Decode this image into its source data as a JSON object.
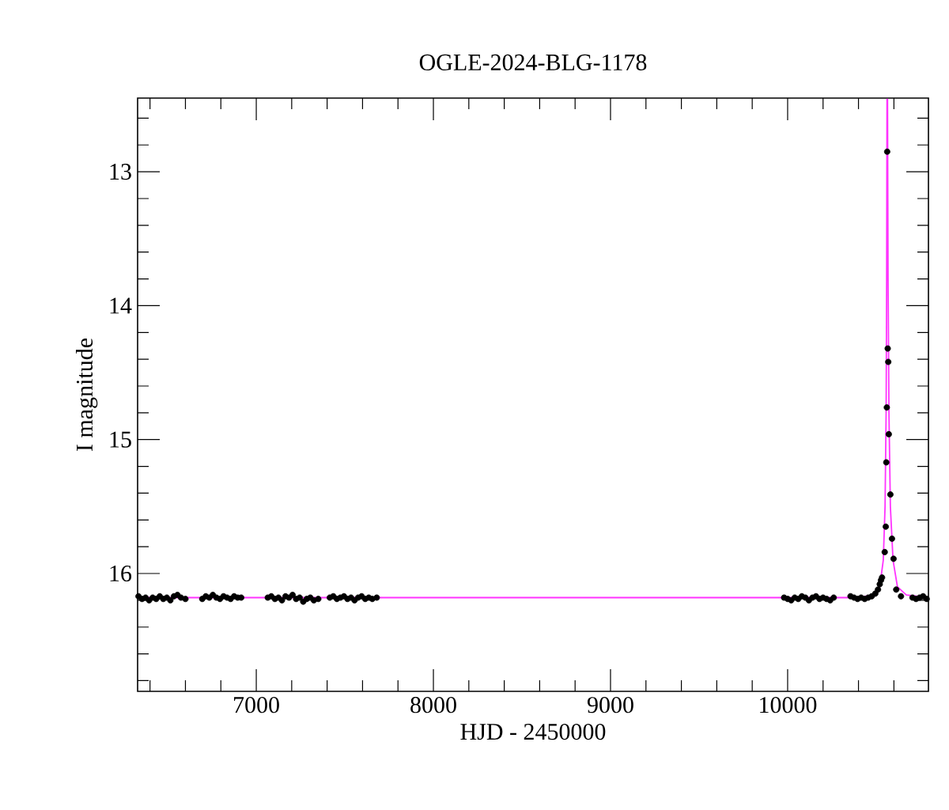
{
  "chart_data": {
    "type": "scatter",
    "title": "OGLE-2024-BLG-1178",
    "xlabel": "HJD - 2450000",
    "ylabel": "I magnitude",
    "xlim": [
      6330,
      10795
    ],
    "ylim": [
      16.88,
      12.45
    ],
    "xticks": [
      {
        "value": 6400,
        "label": null
      },
      {
        "value": 6600,
        "label": null
      },
      {
        "value": 6800,
        "label": null
      },
      7000,
      {
        "value": 7200,
        "label": null
      },
      {
        "value": 7400,
        "label": null
      },
      {
        "value": 7600,
        "label": null
      },
      {
        "value": 7800,
        "label": null
      },
      8000,
      {
        "value": 8200,
        "label": null
      },
      {
        "value": 8400,
        "label": null
      },
      {
        "value": 8600,
        "label": null
      },
      {
        "value": 8800,
        "label": null
      },
      9000,
      {
        "value": 9200,
        "label": null
      },
      {
        "value": 9400,
        "label": null
      },
      {
        "value": 9600,
        "label": null
      },
      {
        "value": 9800,
        "label": null
      },
      10000,
      {
        "value": 10200,
        "label": null
      },
      {
        "value": 10400,
        "label": null
      },
      {
        "value": 10600,
        "label": null
      }
    ],
    "yticks": [
      {
        "value": 12.6,
        "label": null
      },
      {
        "value": 12.8,
        "label": null
      },
      13,
      {
        "value": 13.2,
        "label": null
      },
      {
        "value": 13.4,
        "label": null
      },
      {
        "value": 13.6,
        "label": null
      },
      {
        "value": 13.8,
        "label": null
      },
      14,
      {
        "value": 14.2,
        "label": null
      },
      {
        "value": 14.4,
        "label": null
      },
      {
        "value": 14.6,
        "label": null
      },
      {
        "value": 14.8,
        "label": null
      },
      15,
      {
        "value": 15.2,
        "label": null
      },
      {
        "value": 15.4,
        "label": null
      },
      {
        "value": 15.6,
        "label": null
      },
      {
        "value": 15.8,
        "label": null
      },
      16,
      {
        "value": 16.2,
        "label": null
      },
      {
        "value": 16.4,
        "label": null
      },
      {
        "value": 16.6,
        "label": null
      },
      {
        "value": 16.8,
        "label": null
      }
    ],
    "grid": false,
    "series": [
      {
        "marker": "circle",
        "color": "#000000",
        "x": [
          6335,
          6355,
          6375,
          6395,
          6415,
          6435,
          6455,
          6475,
          6495,
          6515,
          6535,
          6555,
          6575,
          6600,
          6695,
          6715,
          6735,
          6755,
          6775,
          6795,
          6815,
          6835,
          6855,
          6875,
          6895,
          6915,
          7065,
          7085,
          7105,
          7125,
          7145,
          7165,
          7185,
          7205,
          7225,
          7245,
          7265,
          7285,
          7305,
          7325,
          7350,
          7415,
          7435,
          7455,
          7475,
          7495,
          7515,
          7535,
          7555,
          7575,
          7595,
          7615,
          7635,
          7655,
          7680,
          9980,
          10000,
          10020,
          10040,
          10060,
          10080,
          10100,
          10120,
          10140,
          10160,
          10180,
          10200,
          10220,
          10240,
          10260,
          10355,
          10375,
          10395,
          10415,
          10435,
          10455,
          10475,
          10495,
          10510,
          10520,
          10527,
          10533,
          10548,
          10554,
          10557,
          10560,
          10562,
          10565,
          10568,
          10571,
          10580,
          10589,
          10598,
          10613,
          10640,
          10705,
          10725,
          10745,
          10765,
          10785
        ],
        "values": [
          16.17,
          16.19,
          16.18,
          16.2,
          16.18,
          16.19,
          16.17,
          16.19,
          16.18,
          16.2,
          16.17,
          16.16,
          16.18,
          16.19,
          16.19,
          16.17,
          16.18,
          16.16,
          16.18,
          16.19,
          16.17,
          16.18,
          16.19,
          16.17,
          16.18,
          16.18,
          16.18,
          16.17,
          16.19,
          16.18,
          16.2,
          16.17,
          16.18,
          16.16,
          16.19,
          16.18,
          16.21,
          16.19,
          16.18,
          16.2,
          16.19,
          16.18,
          16.17,
          16.19,
          16.18,
          16.17,
          16.19,
          16.18,
          16.2,
          16.18,
          16.17,
          16.19,
          16.18,
          16.19,
          16.18,
          16.18,
          16.19,
          16.2,
          16.18,
          16.19,
          16.17,
          16.18,
          16.2,
          16.18,
          16.17,
          16.19,
          16.18,
          16.19,
          16.2,
          16.18,
          16.17,
          16.18,
          16.19,
          16.18,
          16.19,
          16.18,
          16.17,
          16.15,
          16.12,
          16.08,
          16.05,
          16.03,
          15.84,
          15.65,
          15.17,
          14.76,
          12.85,
          14.32,
          14.42,
          14.96,
          15.41,
          15.74,
          15.89,
          16.12,
          16.17,
          16.18,
          16.19,
          16.18,
          16.17,
          16.19
        ]
      },
      {
        "type": "line",
        "marker": "none",
        "color": "#ff33ff",
        "x": [
          6330,
          10400,
          10480,
          10520,
          10540,
          10550,
          10556,
          10559,
          10561,
          10564,
          10567,
          10572,
          10580,
          10595,
          10620,
          10670,
          10795
        ],
        "values": [
          16.18,
          16.18,
          16.16,
          16.1,
          15.9,
          15.5,
          14.8,
          13.8,
          12.46,
          12.46,
          13.8,
          14.8,
          15.5,
          15.9,
          16.1,
          16.16,
          16.18
        ]
      }
    ]
  }
}
